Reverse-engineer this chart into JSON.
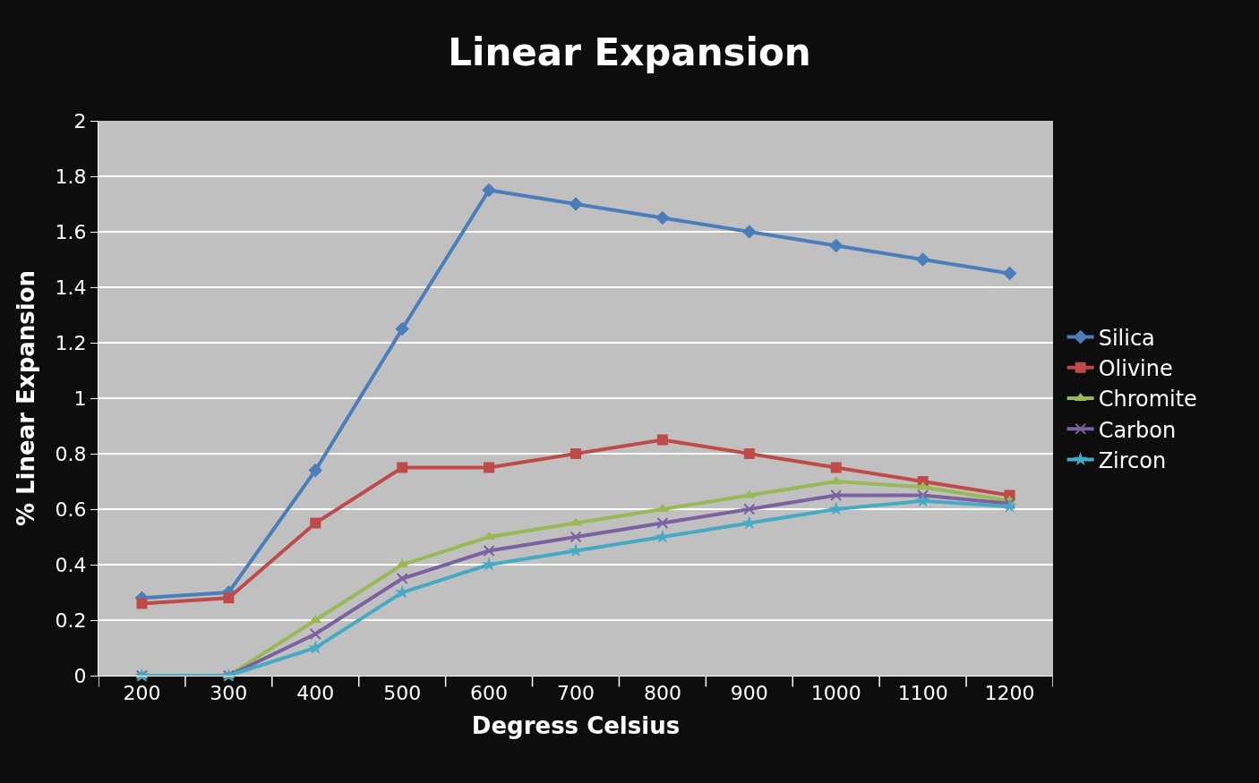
{
  "chart_data": {
    "type": "line",
    "title": "Linear Expansion",
    "xlabel": "Degress Celsius",
    "ylabel": "% Linear Expansion",
    "categories": [
      "200",
      "300",
      "400",
      "500",
      "600",
      "700",
      "800",
      "900",
      "1000",
      "1100",
      "1200"
    ],
    "series": [
      {
        "name": "Silica",
        "color": "#4a7ebb",
        "marker": "diamond",
        "values": [
          0.28,
          0.3,
          0.74,
          1.25,
          1.75,
          1.7,
          1.65,
          1.6,
          1.55,
          1.5,
          1.45
        ]
      },
      {
        "name": "Olivine",
        "color": "#be4b48",
        "marker": "square",
        "values": [
          0.26,
          0.28,
          0.55,
          0.75,
          0.75,
          0.8,
          0.85,
          0.8,
          0.75,
          0.7,
          0.65
        ]
      },
      {
        "name": "Chromite",
        "color": "#98b954",
        "marker": "triangle",
        "values": [
          0,
          0,
          0.2,
          0.4,
          0.5,
          0.55,
          0.6,
          0.65,
          0.7,
          0.68,
          0.63
        ]
      },
      {
        "name": "Carbon",
        "color": "#7d60a0",
        "marker": "cross",
        "values": [
          0,
          0,
          0.15,
          0.35,
          0.45,
          0.5,
          0.55,
          0.6,
          0.65,
          0.65,
          0.62
        ]
      },
      {
        "name": "Zircon",
        "color": "#46aac5",
        "marker": "star",
        "values": [
          0,
          0,
          0.1,
          0.3,
          0.4,
          0.45,
          0.5,
          0.55,
          0.6,
          0.63,
          0.61
        ]
      }
    ],
    "ylim": [
      0,
      2
    ],
    "yticks": [
      0,
      0.2,
      0.4,
      0.6,
      0.8,
      1,
      1.2,
      1.4,
      1.6,
      1.8,
      2
    ],
    "grid": "y",
    "legend": "right",
    "line_style": "solid"
  }
}
